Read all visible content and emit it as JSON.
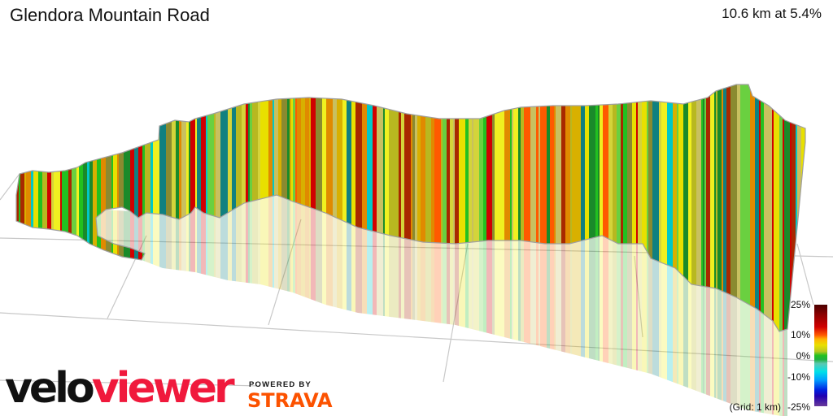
{
  "header": {
    "title": "Glendora Mountain Road",
    "summary": "10.6 km at 5.4%"
  },
  "legend": {
    "labels": [
      "25%",
      "10%",
      "0%",
      "-10%",
      "-25%"
    ],
    "grid_note": "(Grid: 1 km)",
    "gradient_colors": [
      "#4a0000",
      "#d00000",
      "#ffb400",
      "#e8e000",
      "#22c020",
      "#00e0e8",
      "#0020e0",
      "#6a3a9a"
    ]
  },
  "branding": {
    "logo_part1": "velo",
    "logo_part2": "viewer",
    "powered_by": "POWERED BY",
    "strava": "STRAVA"
  },
  "colors": {
    "grid_line": "#c8c8c8",
    "wall_outline": "#a0a0a0",
    "logo_red": "#f0193c",
    "strava_orange": "#fc5200"
  },
  "visualization": {
    "type": "3d-gradient-wall",
    "stripe_palette": [
      "#d4d43a",
      "#e8e000",
      "#b8b820",
      "#22c020",
      "#6ad040",
      "#1a8a2a",
      "#e08a00",
      "#d00000",
      "#a82800",
      "#ff5a00",
      "#8a8a30",
      "#c8c060",
      "#00c8c8",
      "#108080",
      "#d8b000",
      "#f0f020"
    ]
  }
}
